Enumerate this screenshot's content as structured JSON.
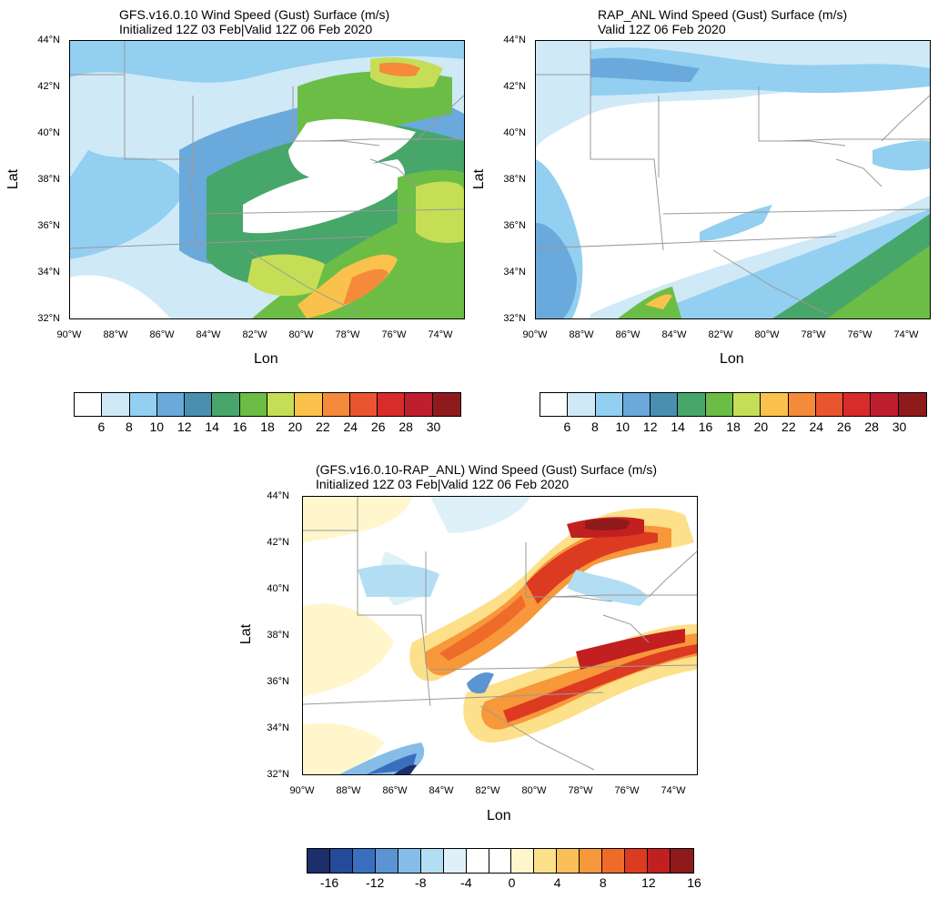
{
  "panels": [
    {
      "id": "gfs",
      "title_line1": "GFS.v16.0.10 Wind Speed (Gust) Surface (m/s)",
      "title_line2": "Initialized 12Z 03 Feb|Valid 12Z 06 Feb 2020",
      "xlabel": "Lon",
      "ylabel": "Lat",
      "yticks": [
        "44°N",
        "42°N",
        "40°N",
        "38°N",
        "36°N",
        "34°N",
        "32°N"
      ],
      "xticks": [
        "90°W",
        "88°W",
        "86°W",
        "84°W",
        "82°W",
        "80°W",
        "78°W",
        "76°W",
        "74°W"
      ],
      "colorbar_labels": [
        "6",
        "8",
        "10",
        "12",
        "14",
        "16",
        "18",
        "20",
        "22",
        "24",
        "26",
        "28",
        "30"
      ],
      "colorbar_colors": [
        "#ffffff",
        "#cfe9f7",
        "#93cff0",
        "#6aa9db",
        "#4a8fb0",
        "#47a66a",
        "#6cbd45",
        "#c6de55",
        "#fac24c",
        "#f58a3a",
        "#ea5530",
        "#d82c2a",
        "#be1e2d",
        "#8f1a1c"
      ]
    },
    {
      "id": "rap",
      "title_line1": "RAP_ANL Wind Speed (Gust) Surface (m/s)",
      "title_line2": "Valid 12Z 06 Feb 2020",
      "xlabel": "Lon",
      "ylabel": "Lat",
      "yticks": [
        "44°N",
        "42°N",
        "40°N",
        "38°N",
        "36°N",
        "34°N",
        "32°N"
      ],
      "xticks": [
        "90°W",
        "88°W",
        "86°W",
        "84°W",
        "82°W",
        "80°W",
        "78°W",
        "76°W",
        "74°W"
      ],
      "colorbar_labels": [
        "6",
        "8",
        "10",
        "12",
        "14",
        "16",
        "18",
        "20",
        "22",
        "24",
        "26",
        "28",
        "30"
      ],
      "colorbar_colors": [
        "#ffffff",
        "#cfe9f7",
        "#93cff0",
        "#6aa9db",
        "#4a8fb0",
        "#47a66a",
        "#6cbd45",
        "#c6de55",
        "#fac24c",
        "#f58a3a",
        "#ea5530",
        "#d82c2a",
        "#be1e2d",
        "#8f1a1c"
      ]
    },
    {
      "id": "diff",
      "title_line1": "(GFS.v16.0.10-RAP_ANL) Wind Speed (Gust) Surface (m/s)",
      "title_line2": "Initialized 12Z 03 Feb|Valid 12Z 06 Feb 2020",
      "xlabel": "Lon",
      "ylabel": "Lat",
      "yticks": [
        "44°N",
        "42°N",
        "40°N",
        "38°N",
        "36°N",
        "34°N",
        "32°N"
      ],
      "xticks": [
        "90°W",
        "88°W",
        "86°W",
        "84°W",
        "82°W",
        "80°W",
        "78°W",
        "76°W",
        "74°W"
      ],
      "colorbar_labels": [
        "-16",
        "-12",
        "-8",
        "-4",
        "0",
        "4",
        "8",
        "12",
        "16"
      ],
      "colorbar_colors": [
        "#1c2f6b",
        "#234b9a",
        "#3a6fbf",
        "#5b94d2",
        "#86bde8",
        "#b3ddf3",
        "#def1f9",
        "#ffffff",
        "#ffffff",
        "#fff6cc",
        "#fde08a",
        "#fbbf5a",
        "#f7983a",
        "#ef6b2a",
        "#dd3a22",
        "#c21f21",
        "#8f1a1c"
      ]
    }
  ]
}
